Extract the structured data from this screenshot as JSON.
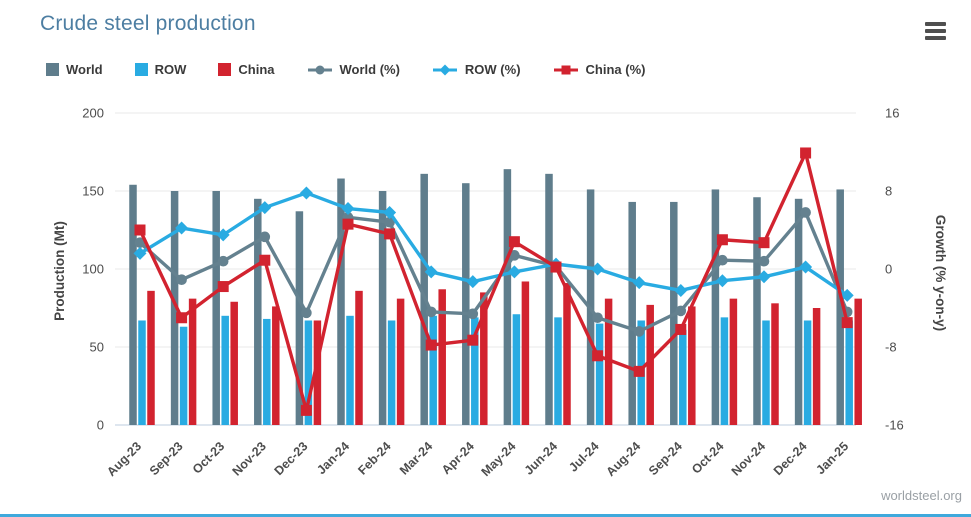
{
  "page": {
    "title": "Crude steel production",
    "watermark": "worldsteel.org"
  },
  "colors": {
    "world": "#5f7d8c",
    "row": "#29abe2",
    "china": "#d2232f",
    "world_pct_line": "#64818f",
    "title": "#4d7ea2",
    "axis_text": "#4d4d4d",
    "grid": "#e8e8e8",
    "baseline": "#d3deea"
  },
  "chart_data": {
    "type": "bar+line combo",
    "title": "Crude steel production",
    "categories": [
      "Aug-23",
      "Sep-23",
      "Oct-23",
      "Nov-23",
      "Dec-23",
      "Jan-24",
      "Feb-24",
      "Mar-24",
      "Apr-24",
      "May-24",
      "Jun-24",
      "Jul-24",
      "Aug-24",
      "Sep-24",
      "Oct-24",
      "Nov-24",
      "Dec-24",
      "Jan-25"
    ],
    "series": [
      {
        "name": "World",
        "type": "bar",
        "axis": "left",
        "color": "#5f7d8c",
        "values": [
          154,
          150,
          150,
          145,
          137,
          158,
          150,
          161,
          155,
          164,
          161,
          151,
          143,
          143,
          151,
          146,
          145,
          151
        ]
      },
      {
        "name": "ROW",
        "type": "bar",
        "axis": "left",
        "color": "#29abe2",
        "values": [
          67,
          63,
          70,
          68,
          67,
          70,
          67,
          70,
          69,
          71,
          69,
          65,
          67,
          61,
          69,
          67,
          67,
          67
        ]
      },
      {
        "name": "China",
        "type": "bar",
        "axis": "left",
        "color": "#d2232f",
        "values": [
          86,
          81,
          79,
          76,
          67,
          86,
          81,
          87,
          85,
          92,
          91,
          81,
          77,
          76,
          81,
          78,
          75,
          81
        ]
      },
      {
        "name": "World (%)",
        "type": "line",
        "marker": "circle",
        "axis": "right",
        "color": "#64818f",
        "values": [
          2.7,
          -1.1,
          0.8,
          3.3,
          -4.5,
          5.3,
          4.8,
          -4.4,
          -4.6,
          1.4,
          0.3,
          -5.0,
          -6.4,
          -4.3,
          0.9,
          0.8,
          5.8,
          -4.4
        ]
      },
      {
        "name": "ROW (%)",
        "type": "line",
        "marker": "diamond",
        "axis": "right",
        "color": "#29abe2",
        "values": [
          1.6,
          4.2,
          3.5,
          6.3,
          7.8,
          6.2,
          5.8,
          -0.3,
          -1.3,
          -0.3,
          0.5,
          0.0,
          -1.4,
          -2.2,
          -1.2,
          -0.8,
          0.2,
          -2.7
        ]
      },
      {
        "name": "China (%)",
        "type": "line",
        "marker": "square",
        "axis": "right",
        "color": "#d2232f",
        "values": [
          4.0,
          -5.0,
          -1.8,
          0.9,
          -14.5,
          4.6,
          3.6,
          -7.8,
          -7.3,
          2.8,
          0.2,
          -8.9,
          -10.5,
          -6.2,
          3.0,
          2.7,
          11.9,
          -5.5
        ]
      }
    ],
    "ylabel_left": "Production (Mt)",
    "ylabel_right": "Growth (% y-on-y)",
    "ylim_left": [
      0,
      200
    ],
    "ylim_right": [
      -16,
      16
    ],
    "left_ticks": [
      0,
      50,
      100,
      150,
      200
    ],
    "right_ticks": [
      -16,
      -8,
      0,
      8,
      16
    ],
    "grid": "horizontal",
    "legend_position": "top"
  }
}
